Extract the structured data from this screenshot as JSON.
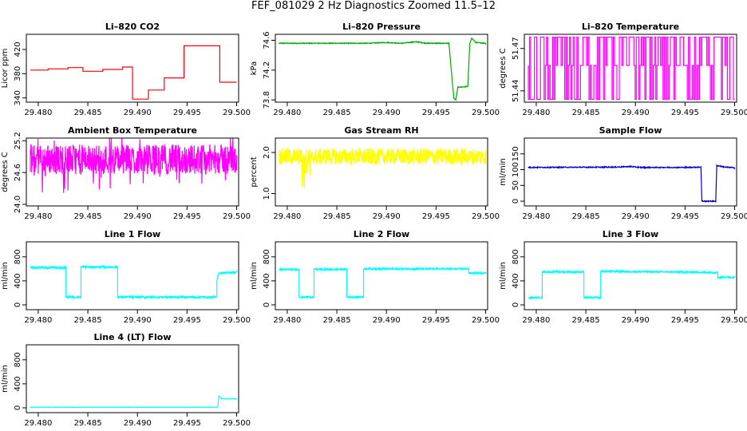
{
  "title": "FEF_081029  2 Hz Diagnostics Zoomed 11.5–12",
  "chart_data": [
    {
      "id": "co2",
      "type": "line",
      "title": "Li–820 CO2",
      "ylabel": "Licor ppm",
      "color": "#ff0000",
      "xlim": [
        29.4788,
        29.5002
      ],
      "ylim": [
        333,
        445
      ],
      "xticks": [
        29.48,
        29.485,
        29.49,
        29.495,
        29.5
      ],
      "xtick_labels": [
        "29.480",
        "29.485",
        "29.490",
        "29.495",
        "29.500"
      ],
      "yticks": [
        340,
        380,
        420
      ],
      "ytick_labels": [
        "340",
        "380",
        "420"
      ],
      "noise": 0,
      "x": [
        29.4792,
        29.481,
        29.481,
        29.483,
        29.483,
        29.4845,
        29.4845,
        29.4865,
        29.4865,
        29.4885,
        29.4885,
        29.4895,
        29.4895,
        29.4911,
        29.4911,
        29.4927,
        29.4927,
        29.4947,
        29.4947,
        29.4983,
        29.4983,
        29.5
      ],
      "y": [
        386,
        386,
        388,
        388,
        390,
        390,
        384,
        384,
        387,
        387,
        391,
        391,
        338,
        338,
        353,
        353,
        373,
        373,
        426,
        426,
        366,
        366
      ]
    },
    {
      "id": "pressure",
      "type": "line",
      "title": "Li–820 Pressure",
      "ylabel": "kPa",
      "color": "#00aa00",
      "xlim": [
        29.4788,
        29.5002
      ],
      "ylim": [
        73.77,
        74.68
      ],
      "xticks": [
        29.48,
        29.485,
        29.49,
        29.495,
        29.5
      ],
      "xtick_labels": [
        "29.480",
        "29.485",
        "29.490",
        "29.495",
        "29.500"
      ],
      "yticks": [
        73.8,
        74.2,
        74.6
      ],
      "ytick_labels": [
        "73.8",
        "74.2",
        "74.6"
      ],
      "noise": 0.005,
      "x": [
        29.4792,
        29.488,
        29.49,
        29.4915,
        29.493,
        29.494,
        29.4955,
        29.4963,
        29.4966,
        29.4968,
        29.497,
        29.4972,
        29.4982,
        29.4984,
        29.4986,
        29.499,
        29.5
      ],
      "y": [
        74.56,
        74.56,
        74.57,
        74.56,
        74.58,
        74.56,
        74.56,
        74.56,
        74.1,
        73.82,
        73.8,
        73.97,
        73.98,
        74.55,
        74.63,
        74.57,
        74.56
      ]
    },
    {
      "id": "licor-temp",
      "type": "line",
      "title": "Li–820 Temperature",
      "ylabel": "degrees C",
      "color": "#ff00ff",
      "xlim": [
        29.4788,
        29.5002
      ],
      "ylim": [
        51.432,
        51.48
      ],
      "xticks": [
        29.48,
        29.485,
        29.49,
        29.495,
        29.5
      ],
      "xtick_labels": [
        "29.480",
        "29.485",
        "29.490",
        "29.495",
        "29.500"
      ],
      "yticks": [
        51.44,
        51.47
      ],
      "ytick_labels": [
        "51.44",
        "51.47"
      ],
      "noise": 0,
      "x": [
        29.4792,
        29.5
      ],
      "y": [
        51.458,
        51.458
      ],
      "toggle": {
        "low": 51.434,
        "high": 51.478,
        "count": 170
      }
    },
    {
      "id": "ambient-temp",
      "type": "line",
      "title": "Ambient Box Temperature",
      "ylabel": "degrees C",
      "color": "#ff00ff",
      "xlim": [
        29.4788,
        29.5002
      ],
      "ylim": [
        23.97,
        25.25
      ],
      "xticks": [
        29.48,
        29.485,
        29.49,
        29.495,
        29.5
      ],
      "xtick_labels": [
        "29.480",
        "29.485",
        "29.490",
        "29.495",
        "29.500"
      ],
      "yticks": [
        24.0,
        24.6,
        25.2
      ],
      "ytick_labels": [
        "24.0",
        "24.6",
        "25.2"
      ],
      "noise": 0.28,
      "x": [
        29.4792,
        29.5
      ],
      "y": [
        24.85,
        24.85
      ]
    },
    {
      "id": "rh",
      "type": "line",
      "title": "Gas Stream RH",
      "ylabel": "percent",
      "color": "#ffff00",
      "xlim": [
        29.4788,
        29.5002
      ],
      "ylim": [
        0.7,
        2.35
      ],
      "xticks": [
        29.48,
        29.485,
        29.49,
        29.495,
        29.5
      ],
      "xtick_labels": [
        "29.480",
        "29.485",
        "29.490",
        "29.495",
        "29.500"
      ],
      "yticks": [
        1.0,
        2.0
      ],
      "ytick_labels": [
        "1.0",
        "2.0"
      ],
      "noise": 0.2,
      "x": [
        29.4792,
        29.5
      ],
      "y": [
        1.9,
        1.9
      ]
    },
    {
      "id": "sample-flow",
      "type": "line",
      "title": "Sample Flow",
      "ylabel": "ml/min",
      "color": "#0000cc",
      "xlim": [
        29.4788,
        29.5002
      ],
      "ylim": [
        -15,
        200
      ],
      "xticks": [
        29.48,
        29.485,
        29.49,
        29.495,
        29.5
      ],
      "xtick_labels": [
        "29.480",
        "29.485",
        "29.490",
        "29.495",
        "29.500"
      ],
      "yticks": [
        0,
        50,
        100,
        150
      ],
      "ytick_labels": [
        "0",
        "50",
        "100",
        "150"
      ],
      "noise": 1.5,
      "x": [
        29.4792,
        29.488,
        29.4895,
        29.4905,
        29.495,
        29.4966,
        29.4967,
        29.4981,
        29.4982,
        29.499,
        29.5
      ],
      "y": [
        107,
        108,
        110,
        107,
        107,
        108,
        0,
        0,
        113,
        108,
        106
      ]
    },
    {
      "id": "line1-flow",
      "type": "line",
      "title": "Line 1 Flow",
      "ylabel": "ml/min",
      "color": "#00ffff",
      "xlim": [
        29.4788,
        29.5002
      ],
      "ylim": [
        -80,
        1050
      ],
      "xticks": [
        29.48,
        29.485,
        29.49,
        29.495,
        29.5
      ],
      "xtick_labels": [
        "29.480",
        "29.485",
        "29.490",
        "29.495",
        "29.500"
      ],
      "yticks": [
        0,
        400,
        800
      ],
      "ytick_labels": [
        "0",
        "400",
        "800"
      ],
      "noise": 18,
      "x": [
        29.4792,
        29.4828,
        29.4828,
        29.4843,
        29.4843,
        29.488,
        29.488,
        29.498,
        29.498,
        29.4982,
        29.5
      ],
      "y": [
        620,
        620,
        130,
        130,
        630,
        630,
        130,
        130,
        400,
        530,
        540
      ]
    },
    {
      "id": "line2-flow",
      "type": "line",
      "title": "Line 2 Flow",
      "ylabel": "ml/min",
      "color": "#00ffff",
      "xlim": [
        29.4788,
        29.5002
      ],
      "ylim": [
        -80,
        1050
      ],
      "xticks": [
        29.48,
        29.485,
        29.49,
        29.495,
        29.5
      ],
      "xtick_labels": [
        "29.480",
        "29.485",
        "29.490",
        "29.495",
        "29.500"
      ],
      "yticks": [
        0,
        400,
        800
      ],
      "ytick_labels": [
        "0",
        "400",
        "800"
      ],
      "noise": 15,
      "x": [
        29.4792,
        29.4812,
        29.4812,
        29.4827,
        29.4827,
        29.486,
        29.486,
        29.4877,
        29.4877,
        29.4983,
        29.4983,
        29.5
      ],
      "y": [
        590,
        590,
        130,
        130,
        590,
        590,
        130,
        130,
        600,
        600,
        530,
        530
      ]
    },
    {
      "id": "line3-flow",
      "type": "line",
      "title": "Line 3 Flow",
      "ylabel": "ml/min",
      "color": "#00ffff",
      "xlim": [
        29.4788,
        29.5002
      ],
      "ylim": [
        -80,
        1050
      ],
      "xticks": [
        29.48,
        29.485,
        29.49,
        29.495,
        29.5
      ],
      "xtick_labels": [
        "29.480",
        "29.485",
        "29.490",
        "29.495",
        "29.500"
      ],
      "yticks": [
        0,
        400,
        800
      ],
      "ytick_labels": [
        "0",
        "400",
        "800"
      ],
      "noise": 15,
      "x": [
        29.4792,
        29.4806,
        29.4806,
        29.4848,
        29.4848,
        29.4865,
        29.4865,
        29.4983,
        29.4983,
        29.5
      ],
      "y": [
        120,
        120,
        550,
        550,
        120,
        120,
        560,
        540,
        460,
        460
      ]
    },
    {
      "id": "line4-flow",
      "type": "line",
      "title": "Line 4 (LT) Flow",
      "ylabel": "ml/min",
      "color": "#00ffff",
      "xlim": [
        29.4788,
        29.5002
      ],
      "ylim": [
        -80,
        1050
      ],
      "xticks": [
        29.48,
        29.485,
        29.49,
        29.495,
        29.5
      ],
      "xtick_labels": [
        "29.480",
        "29.485",
        "29.490",
        "29.495",
        "29.500"
      ],
      "yticks": [
        0,
        400,
        800
      ],
      "ytick_labels": [
        "0",
        "400",
        "800"
      ],
      "noise": 3,
      "x": [
        29.4792,
        29.4981,
        29.4982,
        29.4985,
        29.5
      ],
      "y": [
        10,
        10,
        200,
        150,
        150
      ]
    }
  ]
}
